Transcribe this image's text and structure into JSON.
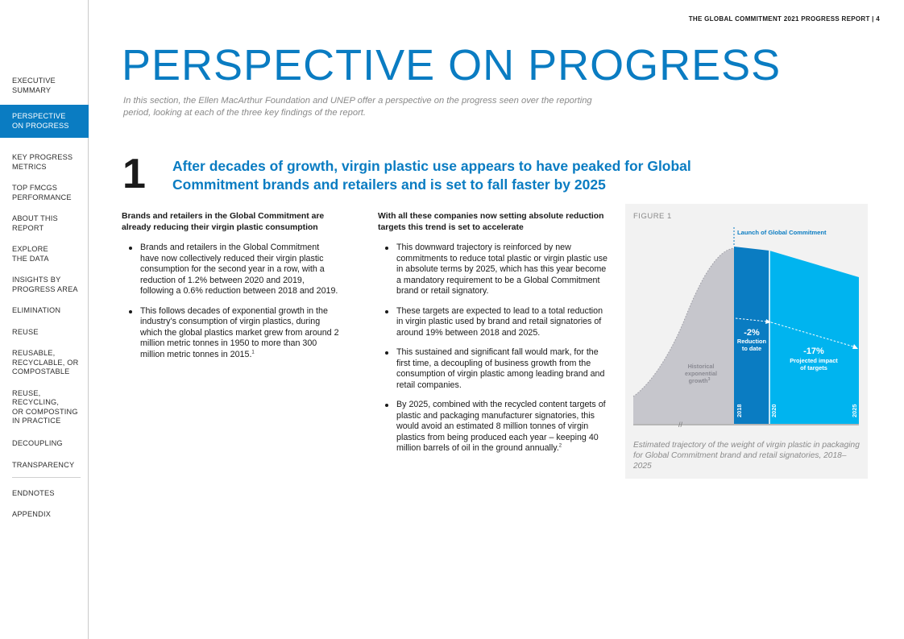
{
  "header": {
    "running_head": "THE GLOBAL COMMITMENT 2021 PROGRESS REPORT  |  4"
  },
  "sidebar": {
    "items": [
      {
        "label": "EXECUTIVE\nSUMMARY",
        "active": false
      },
      {
        "label": "PERSPECTIVE\nON PROGRESS",
        "active": true
      },
      {
        "label": "KEY PROGRESS\nMETRICS",
        "active": false
      },
      {
        "label": "TOP FMCGS\nPERFORMANCE",
        "active": false
      },
      {
        "label": "ABOUT THIS\nREPORT",
        "active": false
      },
      {
        "label": "EXPLORE\nTHE DATA",
        "active": false
      },
      {
        "label": "INSIGHTS BY\nPROGRESS AREA",
        "active": false
      },
      {
        "label": "ELIMINATION",
        "active": false
      },
      {
        "label": "REUSE",
        "active": false
      },
      {
        "label": "REUSABLE,\nRECYCLABLE, OR\nCOMPOSTABLE",
        "active": false
      },
      {
        "label": "REUSE,\nRECYCLING,\nOR COMPOSTING\nIN PRACTICE",
        "active": false
      },
      {
        "label": "DECOUPLING",
        "active": false
      },
      {
        "label": "TRANSPARENCY",
        "active": false
      },
      {
        "label": "ENDNOTES",
        "active": false
      },
      {
        "label": "APPENDIX",
        "active": false
      }
    ]
  },
  "main": {
    "title": "PERSPECTIVE ON PROGRESS",
    "intro": "In this section, the Ellen MacArthur Foundation and UNEP offer a perspective on the progress seen over the reporting period, looking at each of the three key findings of the report.",
    "finding": {
      "number": "1",
      "title": "After decades of growth, virgin plastic use appears to have peaked for Global Commitment brands and retailers and is set to fall faster by 2025"
    },
    "left_column": {
      "heading": "Brands and retailers in the Global Commitment are already reducing their virgin plastic consumption",
      "bullets": [
        {
          "text": "Brands and retailers in the Global Commitment have now collectively reduced their virgin plastic consumption for the second year in a row, with a reduction of 1.2% between 2020 and 2019, following a 0.6% reduction between 2018 and 2019.",
          "note": ""
        },
        {
          "text": "This follows decades of exponential growth in the industry’s consumption of virgin plastics, during which the global plastics market grew from around 2 million metric tonnes in 1950 to more than 300 million metric tonnes in 2015.",
          "note": "1"
        }
      ]
    },
    "right_column": {
      "heading": "With all these companies now setting absolute reduction targets this trend is set to accelerate",
      "bullets": [
        {
          "text": "This downward trajectory is reinforced by new commitments to reduce total plastic or virgin plastic use in absolute terms by 2025, which has this year become a mandatory requirement to be a Global Commitment brand or retail signatory.",
          "note": ""
        },
        {
          "text": "These targets are expected to lead to a total reduction in virgin plastic used by brand and retail signatories of around 19% between 2018 and 2025.",
          "note": ""
        },
        {
          "text": "This sustained and significant fall would mark, for the first time, a decoupling of business growth from the consumption of virgin plastic among leading brand and retail companies.",
          "note": ""
        },
        {
          "text": "By 2025, combined with the recycled content targets of plastic and packaging manufacturer signatories, this would avoid an estimated 8 million tonnes of virgin plastics from being produced each year – keeping 40 million barrels of oil in the ground annually.",
          "note": "2"
        }
      ]
    }
  },
  "figure": {
    "label": "FIGURE 1",
    "caption": "Estimated trajectory of the weight of virgin plastic in packaging for Global Commitment brand and retail signatories, 2018–2025",
    "launch_label": "Launch of Global Commitment",
    "historical_label_lines": [
      "Historical",
      "exponential",
      "growth"
    ],
    "historical_note": "3",
    "reduction_value": "-2%",
    "reduction_label_lines": [
      "Reduction",
      "to date"
    ],
    "projected_value": "-17%",
    "projected_label_lines": [
      "Projected impact",
      "of targets"
    ],
    "year_labels": [
      "2018",
      "2020",
      "2025"
    ],
    "break_mark": "//",
    "colors": {
      "historical": "#c6c6cc",
      "to_date": "#0a7cc2",
      "projected": "#00b4ef",
      "launch": "#0a7cc2"
    }
  }
}
